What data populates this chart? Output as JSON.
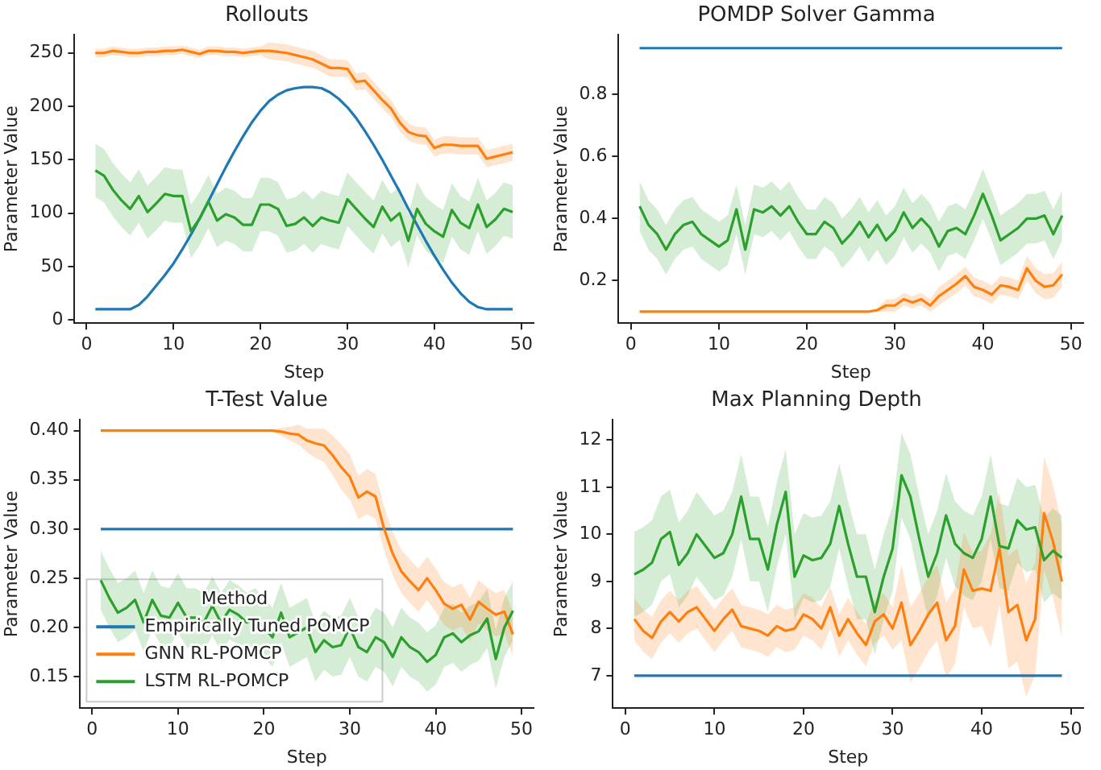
{
  "chart_data": [
    {
      "type": "line",
      "title": "Rollouts",
      "xlabel": "Step",
      "ylabel": "Parameter Value",
      "xlim": [
        -1.4,
        51.4
      ],
      "xticks": [
        0,
        10,
        20,
        30,
        40,
        50
      ],
      "ylim": [
        -3,
        267
      ],
      "yticks": [
        0,
        50,
        100,
        150,
        200,
        250
      ],
      "x": [
        1,
        2,
        3,
        4,
        5,
        6,
        7,
        8,
        9,
        10,
        11,
        12,
        13,
        14,
        15,
        16,
        17,
        18,
        19,
        20,
        21,
        22,
        23,
        24,
        25,
        26,
        27,
        28,
        29,
        30,
        31,
        32,
        33,
        34,
        35,
        36,
        37,
        38,
        39,
        40,
        41,
        42,
        43,
        44,
        45,
        46,
        47,
        48,
        49
      ],
      "series": [
        {
          "color": "#1f77b4",
          "values": [
            10,
            10,
            10,
            10,
            10,
            14,
            22,
            32,
            42,
            53,
            66,
            80,
            95,
            111,
            127,
            143,
            158,
            172,
            185,
            196,
            205,
            211,
            215,
            217,
            218,
            218,
            217,
            213,
            207,
            199,
            189,
            177,
            164,
            150,
            135,
            120,
            104,
            89,
            74,
            60,
            47,
            35,
            25,
            17,
            12,
            10,
            10,
            10,
            10
          ]
        },
        {
          "color": "#ff7f0e",
          "values": [
            250,
            250,
            252,
            251,
            250,
            250,
            251,
            251,
            252,
            252,
            253,
            251,
            249,
            252,
            252,
            251,
            251,
            250,
            251,
            252,
            252,
            251,
            250,
            248,
            246,
            244,
            240,
            236,
            236,
            235,
            223,
            224,
            215,
            206,
            198,
            185,
            176,
            173,
            172,
            161,
            164,
            164,
            163,
            163,
            163,
            151,
            153,
            155,
            157
          ],
          "lower": [
            246,
            246,
            248,
            247,
            246,
            246,
            247,
            247,
            248,
            248,
            249,
            247,
            245,
            248,
            248,
            247,
            247,
            246,
            247,
            248,
            244,
            243,
            242,
            240,
            238,
            236,
            232,
            228,
            228,
            227,
            215,
            216,
            207,
            198,
            190,
            177,
            168,
            165,
            164,
            153,
            156,
            156,
            155,
            155,
            155,
            143,
            145,
            147,
            149
          ],
          "upper": [
            254,
            254,
            256,
            255,
            254,
            254,
            255,
            255,
            256,
            256,
            257,
            255,
            253,
            256,
            256,
            255,
            255,
            254,
            255,
            256,
            260,
            259,
            258,
            256,
            254,
            252,
            248,
            244,
            244,
            243,
            231,
            232,
            223,
            214,
            206,
            193,
            184,
            181,
            180,
            169,
            172,
            172,
            171,
            171,
            171,
            159,
            161,
            163,
            165
          ]
        },
        {
          "color": "#2ca02c",
          "values": [
            140,
            135,
            122,
            112,
            104,
            116,
            101,
            109,
            118,
            116,
            116,
            83,
            95,
            111,
            93,
            99,
            96,
            89,
            89,
            108,
            108,
            104,
            88,
            90,
            96,
            88,
            96,
            93,
            91,
            113,
            104,
            95,
            87,
            106,
            93,
            100,
            74,
            104,
            90,
            83,
            78,
            103,
            91,
            86,
            108,
            87,
            94,
            104,
            101
          ],
          "lower": [
            115,
            110,
            97,
            87,
            79,
            91,
            76,
            84,
            93,
            91,
            91,
            58,
            70,
            86,
            68,
            74,
            71,
            64,
            64,
            83,
            83,
            79,
            63,
            65,
            71,
            63,
            71,
            68,
            66,
            88,
            79,
            70,
            62,
            81,
            68,
            75,
            49,
            79,
            65,
            58,
            53,
            78,
            66,
            61,
            83,
            62,
            69,
            79,
            76
          ],
          "upper": [
            165,
            160,
            147,
            137,
            129,
            141,
            126,
            134,
            143,
            141,
            141,
            108,
            120,
            136,
            118,
            124,
            121,
            114,
            114,
            133,
            133,
            129,
            113,
            115,
            121,
            113,
            121,
            118,
            116,
            138,
            129,
            120,
            112,
            131,
            118,
            125,
            99,
            129,
            115,
            108,
            103,
            128,
            116,
            111,
            133,
            112,
            119,
            129,
            126
          ]
        }
      ]
    },
    {
      "type": "line",
      "title": "POMDP Solver Gamma",
      "xlabel": "Step",
      "ylabel": "Parameter Value",
      "xlim": [
        -1.4,
        51.4
      ],
      "xticks": [
        0,
        10,
        20,
        30,
        40,
        50
      ],
      "ylim": [
        0.063,
        0.993
      ],
      "yticks": [
        0.2,
        0.4,
        0.6,
        0.8
      ],
      "x": [
        1,
        2,
        3,
        4,
        5,
        6,
        7,
        8,
        9,
        10,
        11,
        12,
        13,
        14,
        15,
        16,
        17,
        18,
        19,
        20,
        21,
        22,
        23,
        24,
        25,
        26,
        27,
        28,
        29,
        30,
        31,
        32,
        33,
        34,
        35,
        36,
        37,
        38,
        39,
        40,
        41,
        42,
        43,
        44,
        45,
        46,
        47,
        48,
        49
      ],
      "series": [
        {
          "color": "#1f77b4",
          "values": [
            0.95,
            0.95,
            0.95,
            0.95,
            0.95,
            0.95,
            0.95,
            0.95,
            0.95,
            0.95,
            0.95,
            0.95,
            0.95,
            0.95,
            0.95,
            0.95,
            0.95,
            0.95,
            0.95,
            0.95,
            0.95,
            0.95,
            0.95,
            0.95,
            0.95,
            0.95,
            0.95,
            0.95,
            0.95,
            0.95,
            0.95,
            0.95,
            0.95,
            0.95,
            0.95,
            0.95,
            0.95,
            0.95,
            0.95,
            0.95,
            0.95,
            0.95,
            0.95,
            0.95,
            0.95,
            0.95,
            0.95,
            0.95,
            0.95
          ]
        },
        {
          "color": "#ff7f0e",
          "values": [
            0.1,
            0.1,
            0.1,
            0.1,
            0.1,
            0.1,
            0.1,
            0.1,
            0.1,
            0.1,
            0.1,
            0.1,
            0.1,
            0.1,
            0.1,
            0.1,
            0.1,
            0.1,
            0.1,
            0.1,
            0.1,
            0.1,
            0.1,
            0.1,
            0.1,
            0.1,
            0.1,
            0.105,
            0.12,
            0.12,
            0.14,
            0.13,
            0.14,
            0.12,
            0.15,
            0.17,
            0.19,
            0.215,
            0.18,
            0.17,
            0.155,
            0.185,
            0.18,
            0.17,
            0.24,
            0.2,
            0.18,
            0.185,
            0.22
          ],
          "lower": [
            0.1,
            0.1,
            0.1,
            0.1,
            0.1,
            0.1,
            0.1,
            0.1,
            0.1,
            0.1,
            0.1,
            0.1,
            0.1,
            0.1,
            0.1,
            0.1,
            0.1,
            0.1,
            0.1,
            0.1,
            0.1,
            0.1,
            0.1,
            0.1,
            0.1,
            0.1,
            0.1,
            0.1,
            0.1,
            0.1,
            0.12,
            0.11,
            0.12,
            0.1,
            0.12,
            0.14,
            0.16,
            0.185,
            0.15,
            0.14,
            0.125,
            0.155,
            0.15,
            0.14,
            0.2,
            0.16,
            0.14,
            0.145,
            0.18
          ],
          "upper": [
            0.1,
            0.1,
            0.1,
            0.1,
            0.1,
            0.1,
            0.1,
            0.1,
            0.1,
            0.1,
            0.1,
            0.1,
            0.1,
            0.1,
            0.1,
            0.1,
            0.1,
            0.1,
            0.1,
            0.1,
            0.1,
            0.1,
            0.1,
            0.1,
            0.1,
            0.1,
            0.1,
            0.11,
            0.14,
            0.14,
            0.16,
            0.15,
            0.16,
            0.14,
            0.18,
            0.2,
            0.22,
            0.245,
            0.21,
            0.2,
            0.185,
            0.215,
            0.21,
            0.2,
            0.28,
            0.24,
            0.22,
            0.225,
            0.26
          ]
        },
        {
          "color": "#2ca02c",
          "values": [
            0.44,
            0.38,
            0.35,
            0.3,
            0.35,
            0.38,
            0.39,
            0.35,
            0.33,
            0.31,
            0.33,
            0.43,
            0.3,
            0.43,
            0.42,
            0.44,
            0.41,
            0.44,
            0.39,
            0.35,
            0.35,
            0.39,
            0.37,
            0.32,
            0.35,
            0.39,
            0.34,
            0.38,
            0.33,
            0.36,
            0.42,
            0.37,
            0.4,
            0.37,
            0.31,
            0.36,
            0.37,
            0.35,
            0.41,
            0.48,
            0.41,
            0.33,
            0.35,
            0.37,
            0.4,
            0.4,
            0.41,
            0.35,
            0.41
          ],
          "lower": [
            0.36,
            0.3,
            0.27,
            0.22,
            0.27,
            0.3,
            0.31,
            0.27,
            0.25,
            0.23,
            0.25,
            0.35,
            0.22,
            0.35,
            0.34,
            0.36,
            0.33,
            0.36,
            0.31,
            0.27,
            0.27,
            0.31,
            0.29,
            0.24,
            0.27,
            0.31,
            0.26,
            0.3,
            0.25,
            0.28,
            0.34,
            0.29,
            0.32,
            0.29,
            0.23,
            0.28,
            0.29,
            0.27,
            0.33,
            0.4,
            0.33,
            0.25,
            0.27,
            0.29,
            0.32,
            0.32,
            0.33,
            0.27,
            0.33
          ],
          "upper": [
            0.52,
            0.46,
            0.43,
            0.38,
            0.43,
            0.46,
            0.47,
            0.43,
            0.41,
            0.39,
            0.41,
            0.51,
            0.38,
            0.51,
            0.5,
            0.52,
            0.49,
            0.52,
            0.47,
            0.43,
            0.43,
            0.47,
            0.45,
            0.4,
            0.43,
            0.47,
            0.42,
            0.46,
            0.41,
            0.44,
            0.5,
            0.45,
            0.48,
            0.45,
            0.39,
            0.44,
            0.45,
            0.43,
            0.49,
            0.56,
            0.49,
            0.41,
            0.43,
            0.45,
            0.48,
            0.48,
            0.49,
            0.43,
            0.49
          ]
        }
      ]
    },
    {
      "type": "line",
      "title": "T-Test Value",
      "xlabel": "Step",
      "ylabel": "Parameter Value",
      "xlim": [
        -1.4,
        51.4
      ],
      "xticks": [
        0,
        10,
        20,
        30,
        40,
        50
      ],
      "ylim": [
        0.118,
        0.411
      ],
      "yticks": [
        {
          "value": 0.15,
          "label": "0.15"
        },
        {
          "value": 0.2,
          "label": "0.20"
        },
        {
          "value": 0.25,
          "label": "0.25"
        },
        {
          "value": 0.3,
          "label": "0.30"
        },
        {
          "value": 0.35,
          "label": "0.35"
        },
        {
          "value": 0.4,
          "label": "0.40"
        }
      ],
      "legend": "bottom left",
      "legend_title": "Method",
      "x": [
        1,
        2,
        3,
        4,
        5,
        6,
        7,
        8,
        9,
        10,
        11,
        12,
        13,
        14,
        15,
        16,
        17,
        18,
        19,
        20,
        21,
        22,
        23,
        24,
        25,
        26,
        27,
        28,
        29,
        30,
        31,
        32,
        33,
        34,
        35,
        36,
        37,
        38,
        39,
        40,
        41,
        42,
        43,
        44,
        45,
        46,
        47,
        48,
        49
      ],
      "series": [
        {
          "name": "Empirically Tuned POMCP",
          "color": "#1f77b4",
          "values": [
            0.3,
            0.3,
            0.3,
            0.3,
            0.3,
            0.3,
            0.3,
            0.3,
            0.3,
            0.3,
            0.3,
            0.3,
            0.3,
            0.3,
            0.3,
            0.3,
            0.3,
            0.3,
            0.3,
            0.3,
            0.3,
            0.3,
            0.3,
            0.3,
            0.3,
            0.3,
            0.3,
            0.3,
            0.3,
            0.3,
            0.3,
            0.3,
            0.3,
            0.3,
            0.3,
            0.3,
            0.3,
            0.3,
            0.3,
            0.3,
            0.3,
            0.3,
            0.3,
            0.3,
            0.3,
            0.3,
            0.3,
            0.3,
            0.3
          ]
        },
        {
          "name": "GNN RL-POMCP",
          "color": "#ff7f0e",
          "values": [
            0.4,
            0.4,
            0.4,
            0.4,
            0.4,
            0.4,
            0.4,
            0.4,
            0.4,
            0.4,
            0.4,
            0.4,
            0.4,
            0.4,
            0.4,
            0.4,
            0.4,
            0.4,
            0.4,
            0.4,
            0.4,
            0.399,
            0.397,
            0.396,
            0.39,
            0.387,
            0.385,
            0.375,
            0.363,
            0.353,
            0.332,
            0.338,
            0.333,
            0.3,
            0.275,
            0.257,
            0.247,
            0.238,
            0.25,
            0.238,
            0.224,
            0.219,
            0.223,
            0.208,
            0.226,
            0.219,
            0.213,
            0.216,
            0.193
          ],
          "lower": [
            0.4,
            0.4,
            0.4,
            0.4,
            0.4,
            0.4,
            0.4,
            0.4,
            0.4,
            0.4,
            0.4,
            0.4,
            0.4,
            0.4,
            0.4,
            0.4,
            0.4,
            0.4,
            0.4,
            0.4,
            0.399,
            0.395,
            0.39,
            0.386,
            0.378,
            0.372,
            0.368,
            0.355,
            0.34,
            0.33,
            0.31,
            0.315,
            0.31,
            0.278,
            0.253,
            0.235,
            0.225,
            0.216,
            0.228,
            0.216,
            0.202,
            0.197,
            0.201,
            0.186,
            0.204,
            0.197,
            0.191,
            0.194,
            0.171
          ],
          "upper": [
            0.4,
            0.4,
            0.4,
            0.4,
            0.4,
            0.4,
            0.4,
            0.4,
            0.4,
            0.4,
            0.4,
            0.4,
            0.4,
            0.4,
            0.4,
            0.4,
            0.4,
            0.4,
            0.4,
            0.4,
            0.401,
            0.403,
            0.404,
            0.406,
            0.402,
            0.402,
            0.402,
            0.395,
            0.386,
            0.376,
            0.354,
            0.361,
            0.356,
            0.322,
            0.297,
            0.279,
            0.269,
            0.26,
            0.272,
            0.26,
            0.246,
            0.241,
            0.245,
            0.23,
            0.248,
            0.241,
            0.235,
            0.238,
            0.215
          ]
        },
        {
          "name": "LSTM RL-POMCP",
          "color": "#2ca02c",
          "values": [
            0.248,
            0.23,
            0.215,
            0.22,
            0.228,
            0.205,
            0.228,
            0.212,
            0.21,
            0.225,
            0.21,
            0.21,
            0.205,
            0.222,
            0.205,
            0.218,
            0.213,
            0.205,
            0.21,
            0.2,
            0.19,
            0.215,
            0.19,
            0.195,
            0.2,
            0.175,
            0.187,
            0.18,
            0.182,
            0.2,
            0.18,
            0.175,
            0.19,
            0.185,
            0.17,
            0.19,
            0.18,
            0.175,
            0.165,
            0.172,
            0.19,
            0.194,
            0.185,
            0.192,
            0.196,
            0.209,
            0.168,
            0.2,
            0.217
          ],
          "lower": [
            0.218,
            0.2,
            0.185,
            0.19,
            0.198,
            0.175,
            0.198,
            0.182,
            0.18,
            0.195,
            0.18,
            0.18,
            0.175,
            0.192,
            0.175,
            0.188,
            0.183,
            0.175,
            0.18,
            0.17,
            0.16,
            0.185,
            0.16,
            0.165,
            0.17,
            0.145,
            0.157,
            0.15,
            0.152,
            0.17,
            0.15,
            0.145,
            0.16,
            0.155,
            0.14,
            0.16,
            0.15,
            0.145,
            0.135,
            0.142,
            0.16,
            0.164,
            0.155,
            0.162,
            0.166,
            0.179,
            0.138,
            0.17,
            0.187
          ],
          "upper": [
            0.278,
            0.26,
            0.245,
            0.25,
            0.258,
            0.235,
            0.258,
            0.242,
            0.24,
            0.255,
            0.24,
            0.24,
            0.235,
            0.252,
            0.235,
            0.248,
            0.243,
            0.235,
            0.24,
            0.23,
            0.22,
            0.245,
            0.22,
            0.225,
            0.23,
            0.205,
            0.217,
            0.21,
            0.212,
            0.23,
            0.21,
            0.205,
            0.22,
            0.215,
            0.2,
            0.22,
            0.21,
            0.205,
            0.195,
            0.202,
            0.22,
            0.224,
            0.215,
            0.222,
            0.226,
            0.239,
            0.198,
            0.23,
            0.247
          ]
        }
      ]
    },
    {
      "type": "line",
      "title": "Max Planning Depth",
      "xlabel": "Step",
      "ylabel": "Parameter Value",
      "xlim": [
        -1.4,
        51.4
      ],
      "xticks": [
        0,
        10,
        20,
        30,
        40,
        50
      ],
      "ylim": [
        6.31,
        12.43
      ],
      "yticks": [
        7,
        8,
        9,
        10,
        11,
        12
      ],
      "x": [
        1,
        2,
        3,
        4,
        5,
        6,
        7,
        8,
        9,
        10,
        11,
        12,
        13,
        14,
        15,
        16,
        17,
        18,
        19,
        20,
        21,
        22,
        23,
        24,
        25,
        26,
        27,
        28,
        29,
        30,
        31,
        32,
        33,
        34,
        35,
        36,
        37,
        38,
        39,
        40,
        41,
        42,
        43,
        44,
        45,
        46,
        47,
        48,
        49
      ],
      "series": [
        {
          "color": "#1f77b4",
          "values": [
            7,
            7,
            7,
            7,
            7,
            7,
            7,
            7,
            7,
            7,
            7,
            7,
            7,
            7,
            7,
            7,
            7,
            7,
            7,
            7,
            7,
            7,
            7,
            7,
            7,
            7,
            7,
            7,
            7,
            7,
            7,
            7,
            7,
            7,
            7,
            7,
            7,
            7,
            7,
            7,
            7,
            7,
            7,
            7,
            7,
            7,
            7,
            7,
            7
          ]
        },
        {
          "color": "#ff7f0e",
          "values": [
            8.2,
            7.95,
            7.8,
            8.15,
            8.35,
            8.15,
            8.35,
            8.45,
            8.2,
            7.95,
            8.2,
            8.4,
            8.05,
            8,
            7.95,
            7.85,
            8.05,
            7.95,
            8,
            8.3,
            8.2,
            8,
            8.45,
            7.85,
            8.2,
            7.9,
            7.65,
            8.15,
            8.3,
            8,
            8.55,
            7.65,
            7.95,
            8.3,
            8.55,
            7.75,
            8.05,
            9.25,
            8.8,
            8.85,
            8.8,
            9.7,
            8.35,
            8.5,
            7.75,
            8.2,
            10.45,
            9.85,
            9
          ],
          "lower": [
            7.75,
            7.5,
            7.35,
            7.7,
            7.9,
            7.7,
            7.9,
            8,
            7.75,
            7.5,
            7.75,
            7.95,
            7.6,
            7.55,
            7.5,
            7.4,
            7.6,
            7.5,
            7.55,
            7.85,
            7.75,
            7.55,
            8,
            7.4,
            7.75,
            7.45,
            7.2,
            7.7,
            7.85,
            7.55,
            7.75,
            6.85,
            7.15,
            7.5,
            7.75,
            6.95,
            7.25,
            8.45,
            8,
            8.05,
            7.6,
            8.5,
            7.15,
            7.3,
            6.55,
            7,
            9.25,
            8.65,
            7.8
          ],
          "upper": [
            8.65,
            8.4,
            8.25,
            8.6,
            8.8,
            8.6,
            8.8,
            8.9,
            8.65,
            8.4,
            8.65,
            8.85,
            8.5,
            8.45,
            8.4,
            8.3,
            8.5,
            8.4,
            8.45,
            8.75,
            8.65,
            8.45,
            8.9,
            8.3,
            8.65,
            8.35,
            8.1,
            8.6,
            8.75,
            8.45,
            9.35,
            8.45,
            8.75,
            9.1,
            9.35,
            8.55,
            8.85,
            10.05,
            9.6,
            9.65,
            10,
            10.9,
            9.55,
            9.7,
            8.95,
            9.4,
            11.65,
            11.05,
            10.2
          ]
        },
        {
          "color": "#2ca02c",
          "values": [
            9.15,
            9.25,
            9.4,
            9.9,
            10.05,
            9.35,
            9.6,
            10,
            9.75,
            9.5,
            9.6,
            10,
            10.8,
            9.9,
            9.9,
            9.25,
            10.2,
            10.9,
            9.1,
            9.55,
            9.45,
            9.5,
            9.8,
            10.6,
            9.8,
            9.1,
            9.1,
            8.35,
            9.1,
            9.7,
            11.25,
            10.8,
            9.9,
            9.1,
            9.6,
            10.4,
            9.8,
            9.6,
            9.5,
            9.9,
            10.8,
            9.75,
            9.7,
            10.3,
            10.1,
            10.15,
            9.45,
            9.65,
            9.5
          ],
          "lower": [
            8.25,
            8.35,
            8.5,
            9,
            9.15,
            8.45,
            8.7,
            9.1,
            8.85,
            8.6,
            8.7,
            9.1,
            9.9,
            9,
            9,
            8.35,
            9.3,
            10,
            8.2,
            8.65,
            8.55,
            8.6,
            8.9,
            9.7,
            8.9,
            8.2,
            8.2,
            7.45,
            8.2,
            8.8,
            10.35,
            9.9,
            9,
            8.2,
            8.7,
            9.5,
            8.9,
            8.7,
            8.6,
            9,
            9.9,
            8.85,
            8.8,
            9.4,
            9.2,
            9.25,
            8.55,
            8.75,
            8.6
          ],
          "upper": [
            10.05,
            10.15,
            10.3,
            10.8,
            10.95,
            10.25,
            10.5,
            10.9,
            10.65,
            10.4,
            10.5,
            10.9,
            11.7,
            10.8,
            10.8,
            10.15,
            11.1,
            11.8,
            10,
            10.45,
            10.35,
            10.4,
            10.7,
            11.5,
            10.7,
            10,
            10,
            9.25,
            10,
            10.6,
            12.15,
            11.7,
            10.8,
            10,
            10.5,
            11.3,
            10.7,
            10.5,
            10.4,
            10.8,
            11.7,
            10.65,
            10.6,
            11.2,
            11,
            11.05,
            10.35,
            10.55,
            10.4
          ]
        }
      ]
    }
  ]
}
